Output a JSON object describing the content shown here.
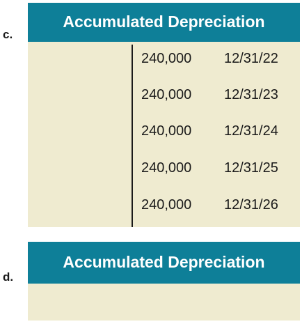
{
  "part_c": {
    "letter": "c.",
    "account_title": "Accumulated Depreciation",
    "credit_entries": [
      {
        "amount": "240,000",
        "date": "12/31/22"
      },
      {
        "amount": "240,000",
        "date": "12/31/23"
      },
      {
        "amount": "240,000",
        "date": "12/31/24"
      },
      {
        "amount": "240,000",
        "date": "12/31/25"
      },
      {
        "amount": "240,000",
        "date": "12/31/26"
      }
    ]
  },
  "part_d": {
    "letter": "d.",
    "account_title": "Accumulated Depreciation"
  },
  "colors": {
    "header_bg": "#0e7f98",
    "body_bg": "#efebd0",
    "text": "#1a1a1a"
  }
}
